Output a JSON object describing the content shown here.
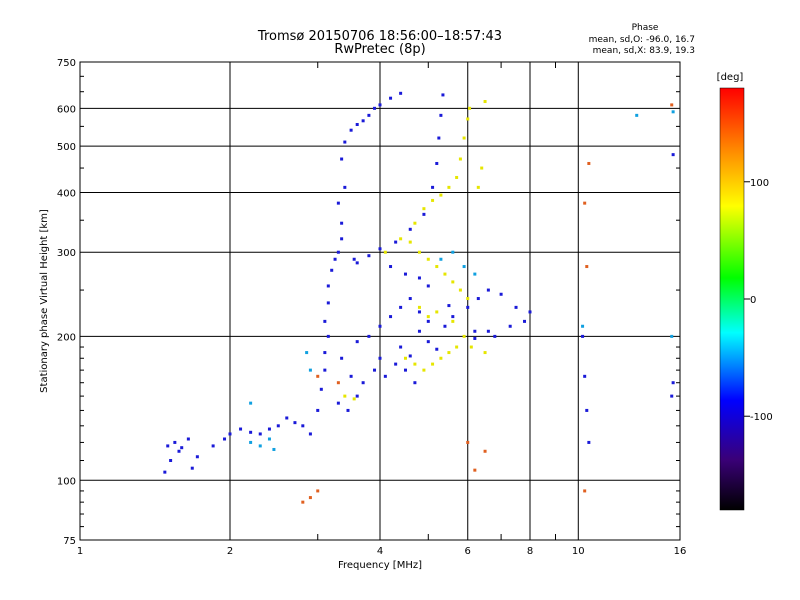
{
  "chart_data": {
    "type": "scatter",
    "title": "Tromsø 20150706 18:56:00–18:57:43",
    "subtitle": "RwPretec (8p)",
    "xlabel": "Frequency [MHz]",
    "ylabel": "Stationary phase Virtual Height [km]",
    "x_scale": "log",
    "y_scale": "log",
    "xlim": [
      1,
      16
    ],
    "ylim": [
      75,
      750
    ],
    "x_ticks": [
      1,
      2,
      4,
      6,
      8,
      10,
      16
    ],
    "x_minor_ticks": [
      3,
      5,
      7,
      9
    ],
    "y_ticks": [
      75,
      100,
      200,
      300,
      400,
      500,
      600,
      750
    ],
    "grid": true,
    "stats_box": {
      "header": "Phase",
      "o_line": "mean, sd,O: -96.0, 16.7",
      "x_line": "mean, sd,X:  83.9, 19.3"
    },
    "colorbar": {
      "label": "[deg]",
      "range": [
        -180,
        180
      ],
      "ticks": [
        100,
        0,
        -100
      ],
      "colors": [
        "#ff0000",
        "#ff8c00",
        "#ffff00",
        "#00ff00",
        "#00ffff",
        "#0000ff",
        "#3a0078",
        "#000000"
      ]
    },
    "series": [
      {
        "values": [
          [
            1.48,
            104
          ],
          [
            1.52,
            110
          ],
          [
            1.5,
            118
          ],
          [
            1.55,
            120
          ],
          [
            1.6,
            117
          ],
          [
            1.65,
            122
          ],
          [
            1.58,
            115
          ],
          [
            1.68,
            106
          ],
          [
            1.72,
            112
          ],
          [
            1.85,
            118
          ],
          [
            1.95,
            122
          ],
          [
            2.0,
            125
          ],
          [
            2.1,
            128
          ],
          [
            2.2,
            126
          ],
          [
            2.3,
            125
          ],
          [
            2.4,
            128
          ],
          [
            2.5,
            130
          ],
          [
            2.6,
            135
          ],
          [
            2.7,
            132
          ],
          [
            2.8,
            130
          ],
          [
            2.9,
            125
          ],
          [
            3.0,
            140
          ],
          [
            3.05,
            155
          ],
          [
            3.1,
            170
          ],
          [
            3.1,
            185
          ],
          [
            3.15,
            200
          ],
          [
            3.1,
            215
          ],
          [
            3.15,
            235
          ],
          [
            3.15,
            255
          ],
          [
            3.2,
            275
          ],
          [
            3.25,
            290
          ],
          [
            3.3,
            300
          ],
          [
            3.35,
            320
          ],
          [
            3.35,
            345
          ],
          [
            3.3,
            380
          ],
          [
            3.4,
            410
          ],
          [
            3.55,
            290
          ],
          [
            3.6,
            285
          ],
          [
            3.8,
            295
          ],
          [
            4.0,
            305
          ],
          [
            4.3,
            315
          ],
          [
            4.6,
            335
          ],
          [
            4.9,
            360
          ],
          [
            5.1,
            410
          ],
          [
            5.2,
            460
          ],
          [
            5.25,
            520
          ],
          [
            5.3,
            580
          ],
          [
            5.35,
            640
          ],
          [
            3.35,
            470
          ],
          [
            3.4,
            510
          ],
          [
            3.5,
            540
          ],
          [
            3.6,
            555
          ],
          [
            3.7,
            565
          ],
          [
            3.8,
            580
          ],
          [
            3.9,
            600
          ],
          [
            4.0,
            610
          ],
          [
            4.2,
            630
          ],
          [
            4.4,
            645
          ],
          [
            3.35,
            180
          ],
          [
            3.6,
            195
          ],
          [
            3.8,
            200
          ],
          [
            4.0,
            210
          ],
          [
            4.2,
            220
          ],
          [
            4.4,
            230
          ],
          [
            4.6,
            240
          ],
          [
            4.8,
            225
          ],
          [
            4.0,
            180
          ],
          [
            4.3,
            175
          ],
          [
            4.6,
            182
          ],
          [
            5.0,
            195
          ],
          [
            5.2,
            188
          ],
          [
            3.5,
            165
          ],
          [
            3.7,
            160
          ],
          [
            3.9,
            170
          ],
          [
            4.1,
            165
          ],
          [
            4.5,
            170
          ],
          [
            4.7,
            160
          ],
          [
            3.3,
            145
          ],
          [
            3.45,
            140
          ],
          [
            3.6,
            150
          ],
          [
            4.4,
            190
          ],
          [
            4.8,
            205
          ],
          [
            5.0,
            215
          ],
          [
            5.4,
            210
          ],
          [
            5.6,
            220
          ],
          [
            6.0,
            230
          ],
          [
            6.3,
            240
          ],
          [
            6.6,
            250
          ],
          [
            7.0,
            245
          ],
          [
            7.5,
            230
          ],
          [
            7.8,
            215
          ],
          [
            8.0,
            225
          ],
          [
            4.2,
            280
          ],
          [
            4.5,
            270
          ],
          [
            4.8,
            265
          ],
          [
            5.0,
            255
          ],
          [
            5.5,
            232
          ],
          [
            6.2,
            205
          ],
          [
            6.8,
            200
          ],
          [
            7.3,
            210
          ],
          [
            6.2,
            198
          ],
          [
            6.6,
            205
          ],
          [
            10.2,
            200
          ],
          [
            10.3,
            165
          ],
          [
            10.4,
            140
          ],
          [
            10.5,
            120
          ],
          [
            15.4,
            150
          ],
          [
            15.5,
            160
          ],
          [
            15.5,
            480
          ]
        ]
      },
      {
        "values": [
          [
            4.1,
            300
          ],
          [
            4.4,
            320
          ],
          [
            4.7,
            345
          ],
          [
            4.9,
            370
          ],
          [
            5.1,
            385
          ],
          [
            5.3,
            395
          ],
          [
            5.5,
            410
          ],
          [
            5.7,
            430
          ],
          [
            5.8,
            470
          ],
          [
            5.9,
            520
          ],
          [
            6.0,
            570
          ],
          [
            6.05,
            600
          ],
          [
            4.6,
            315
          ],
          [
            4.8,
            300
          ],
          [
            5.0,
            290
          ],
          [
            5.2,
            280
          ],
          [
            5.4,
            270
          ],
          [
            5.6,
            260
          ],
          [
            5.8,
            250
          ],
          [
            6.0,
            240
          ],
          [
            4.5,
            180
          ],
          [
            4.7,
            175
          ],
          [
            4.9,
            170
          ],
          [
            5.1,
            175
          ],
          [
            5.3,
            180
          ],
          [
            5.5,
            185
          ],
          [
            5.7,
            190
          ],
          [
            5.9,
            200
          ],
          [
            4.8,
            230
          ],
          [
            5.0,
            220
          ],
          [
            5.2,
            225
          ],
          [
            5.6,
            215
          ],
          [
            6.1,
            190
          ],
          [
            6.5,
            185
          ],
          [
            6.3,
            410
          ],
          [
            6.4,
            450
          ],
          [
            6.5,
            620
          ],
          [
            3.4,
            150
          ],
          [
            3.55,
            148
          ]
        ]
      },
      {
        "values": [
          [
            2.2,
            120
          ],
          [
            2.3,
            118
          ],
          [
            2.4,
            122
          ],
          [
            2.45,
            116
          ],
          [
            2.9,
            170
          ],
          [
            2.85,
            185
          ],
          [
            2.2,
            145
          ],
          [
            5.3,
            290
          ],
          [
            5.6,
            300
          ],
          [
            5.9,
            280
          ],
          [
            6.2,
            270
          ],
          [
            15.5,
            590
          ],
          [
            13.1,
            580
          ],
          [
            10.2,
            210
          ],
          [
            15.4,
            200
          ]
        ]
      },
      {
        "values": [
          [
            2.8,
            90
          ],
          [
            3.0,
            95
          ],
          [
            2.9,
            92
          ],
          [
            10.3,
            95
          ],
          [
            10.4,
            280
          ],
          [
            10.3,
            380
          ],
          [
            10.5,
            460
          ],
          [
            6.5,
            115
          ],
          [
            6.2,
            105
          ],
          [
            15.4,
            610
          ],
          [
            3.0,
            165
          ],
          [
            3.3,
            160
          ],
          [
            6.0,
            120
          ]
        ]
      }
    ]
  }
}
